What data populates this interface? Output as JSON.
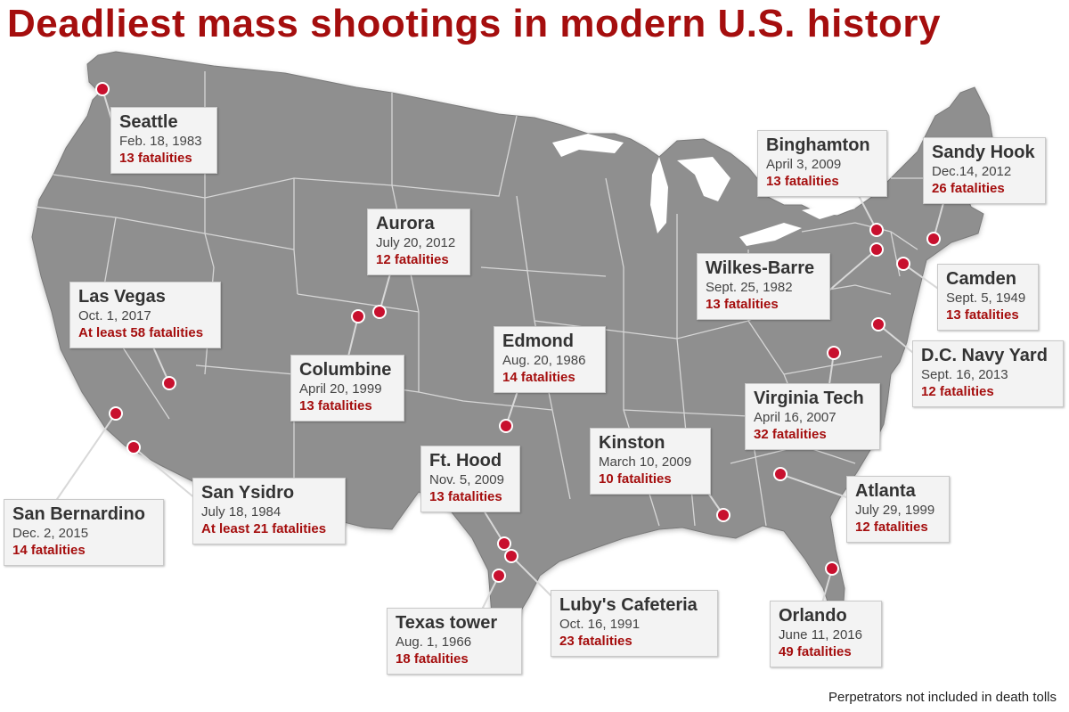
{
  "title": "Deadliest mass shootings in modern U.S. history",
  "note": "Perpetrators not included in death tolls",
  "colors": {
    "title": "#a50e0e",
    "land": "#8f8f8f",
    "border": "#d6d6d6",
    "marker": "#c8102e",
    "fatalities": "#a50e0e"
  },
  "events": [
    {
      "id": "seattle",
      "name": "Seattle",
      "date": "Feb. 18, 1983",
      "fatalities": "13 fatalities"
    },
    {
      "id": "aurora",
      "name": "Aurora",
      "date": "July 20, 2012",
      "fatalities": "12 fatalities"
    },
    {
      "id": "las-vegas",
      "name": "Las Vegas",
      "date": "Oct. 1, 2017",
      "fatalities": "At least 58 fatalities"
    },
    {
      "id": "columbine",
      "name": "Columbine",
      "date": "April 20, 1999",
      "fatalities": "13 fatalities"
    },
    {
      "id": "edmond",
      "name": "Edmond",
      "date": "Aug. 20, 1986",
      "fatalities": "14 fatalities"
    },
    {
      "id": "binghamton",
      "name": "Binghamton",
      "date": "April 3, 2009",
      "fatalities": "13 fatalities"
    },
    {
      "id": "sandy-hook",
      "name": "Sandy Hook",
      "date": "Dec.14, 2012",
      "fatalities": "26 fatalities"
    },
    {
      "id": "wilkes-barre",
      "name": "Wilkes-Barre",
      "date": "Sept. 25, 1982",
      "fatalities": "13 fatalities"
    },
    {
      "id": "camden",
      "name": "Camden",
      "date": "Sept. 5, 1949",
      "fatalities": "13 fatalities"
    },
    {
      "id": "dc-navy-yard",
      "name": "D.C. Navy Yard",
      "date": "Sept. 16, 2013",
      "fatalities": "12 fatalities"
    },
    {
      "id": "virginia-tech",
      "name": "Virginia Tech",
      "date": "April 16, 2007",
      "fatalities": "32 fatalities"
    },
    {
      "id": "kinston",
      "name": "Kinston",
      "date": "March 10, 2009",
      "fatalities": "10 fatalities"
    },
    {
      "id": "atlanta",
      "name": "Atlanta",
      "date": "July 29, 1999",
      "fatalities": "12 fatalities"
    },
    {
      "id": "ft-hood",
      "name": "Ft. Hood",
      "date": "Nov. 5, 2009",
      "fatalities": "13 fatalities"
    },
    {
      "id": "san-ysidro",
      "name": "San Ysidro",
      "date": "July 18, 1984",
      "fatalities": "At least 21 fatalities"
    },
    {
      "id": "san-bernardino",
      "name": "San Bernardino",
      "date": "Dec. 2, 2015",
      "fatalities": "14 fatalities"
    },
    {
      "id": "lubys-cafeteria",
      "name": "Luby's Cafeteria",
      "date": "Oct. 16, 1991",
      "fatalities": "23 fatalities"
    },
    {
      "id": "texas-tower",
      "name": "Texas tower",
      "date": "Aug. 1, 1966",
      "fatalities": "18 fatalities"
    },
    {
      "id": "orlando",
      "name": "Orlando",
      "date": "June 11, 2016",
      "fatalities": "49 fatalities"
    }
  ]
}
